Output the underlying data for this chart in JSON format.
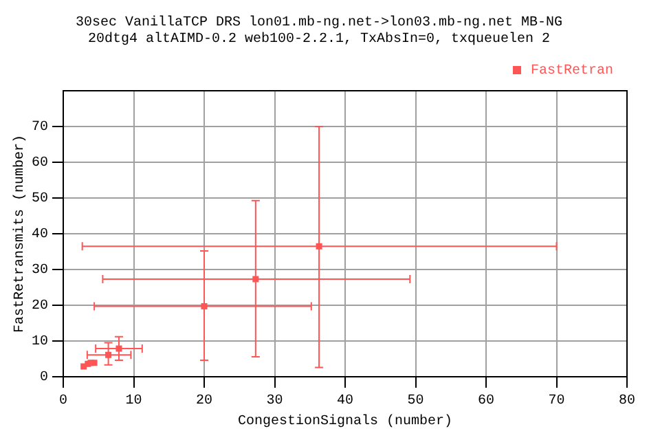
{
  "chart_data": {
    "type": "scatter",
    "title": "30sec VanillaTCP DRS lon01.mb-ng.net->lon03.mb-ng.net MB-NG",
    "subtitle": "20dtg4 altAIMD-0.2 web100-2.2.1, TxAbsIn=0, txqueuelen 2",
    "xlabel": "CongestionSignals (number)",
    "ylabel": "FastRetransmits (number)",
    "series": [
      {
        "name": "FastRetran",
        "color": "#ff5555",
        "x": [
          36.3,
          27.3,
          20,
          7.9,
          6.4,
          2.9,
          3.5,
          3.9,
          4.4
        ],
        "values": [
          36.5,
          27.3,
          19.7,
          7.9,
          6.1,
          2.9,
          3.6,
          3.9,
          3.9
        ],
        "errors": [
          [
            2.6,
            70
          ],
          [
            5.6,
            49.3
          ],
          [
            4.6,
            35.2
          ],
          [
            4.6,
            11.2
          ],
          [
            3.3,
            9.5
          ],
          null,
          null,
          null,
          null
        ],
        "xerrors": [
          [
            2.7,
            70
          ],
          [
            5.6,
            49.2
          ],
          [
            4.4,
            35.2
          ],
          [
            4.6,
            11.2
          ],
          [
            3.4,
            9.6
          ],
          null,
          null,
          null,
          null
        ]
      }
    ],
    "xlim": [
      0,
      80
    ],
    "xticks": [
      0,
      10,
      20,
      30,
      40,
      50,
      60,
      70,
      80
    ],
    "ylim": [
      0,
      80
    ],
    "yticks": [
      0,
      10,
      20,
      30,
      40,
      50,
      60,
      70
    ],
    "grid": true,
    "legend": "top right",
    "marker": "square"
  }
}
